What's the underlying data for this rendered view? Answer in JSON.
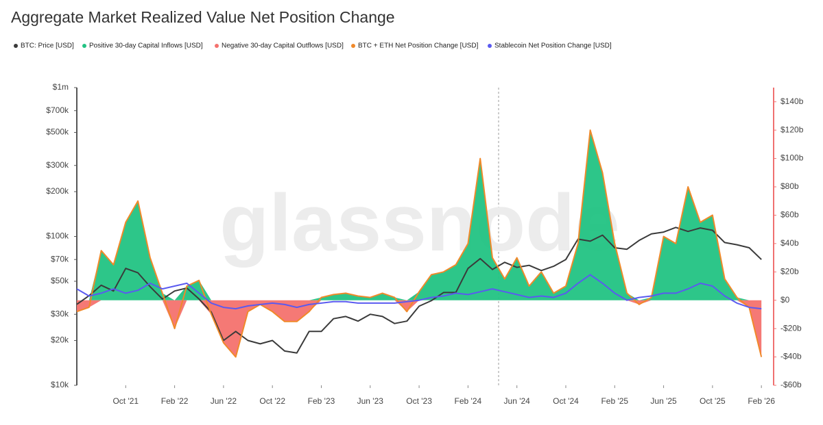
{
  "chart_data": {
    "type": "line",
    "title": "Aggregate Market Realized Value Net Position Change",
    "watermark": "glassnode",
    "x": [
      "2021-06",
      "2021-07",
      "2021-08",
      "2021-09",
      "2021-10",
      "2021-11",
      "2021-12",
      "2022-01",
      "2022-02",
      "2022-03",
      "2022-04",
      "2022-05",
      "2022-06",
      "2022-07",
      "2022-08",
      "2022-09",
      "2022-10",
      "2022-11",
      "2022-12",
      "2023-01",
      "2023-02",
      "2023-03",
      "2023-04",
      "2023-05",
      "2023-06",
      "2023-07",
      "2023-08",
      "2023-09",
      "2023-10",
      "2023-11",
      "2023-12",
      "2024-01",
      "2024-02",
      "2024-03",
      "2024-04",
      "2024-05",
      "2024-06",
      "2024-07",
      "2024-08",
      "2024-09",
      "2024-10",
      "2024-11",
      "2024-12",
      "2025-01",
      "2025-02",
      "2025-03",
      "2025-04",
      "2025-05",
      "2025-06",
      "2025-07",
      "2025-08",
      "2025-09",
      "2025-10",
      "2025-11",
      "2025-12",
      "2026-01",
      "2026-02"
    ],
    "xlim": [
      "2021-06",
      "2026-03"
    ],
    "xticks": [
      {
        "value": "2021-10",
        "label": "Oct '21"
      },
      {
        "value": "2022-02",
        "label": "Feb '22"
      },
      {
        "value": "2022-06",
        "label": "Jun '22"
      },
      {
        "value": "2022-10",
        "label": "Oct '22"
      },
      {
        "value": "2023-02",
        "label": "Feb '23"
      },
      {
        "value": "2023-06",
        "label": "Jun '23"
      },
      {
        "value": "2023-10",
        "label": "Oct '23"
      },
      {
        "value": "2024-02",
        "label": "Feb '24"
      },
      {
        "value": "2024-06",
        "label": "Jun '24"
      },
      {
        "value": "2024-10",
        "label": "Oct '24"
      },
      {
        "value": "2025-02",
        "label": "Feb '25"
      },
      {
        "value": "2025-06",
        "label": "Jun '25"
      },
      {
        "value": "2025-10",
        "label": "Oct '25"
      },
      {
        "value": "2026-02",
        "label": "Feb '26"
      }
    ],
    "ylog": true,
    "ylim": [
      10000,
      1000000
    ],
    "yticks": [
      {
        "value": 10000,
        "label": "$10k"
      },
      {
        "value": 20000,
        "label": "$20k"
      },
      {
        "value": 30000,
        "label": "$30k"
      },
      {
        "value": 50000,
        "label": "$50k"
      },
      {
        "value": 70000,
        "label": "$70k"
      },
      {
        "value": 100000,
        "label": "$100k"
      },
      {
        "value": 200000,
        "label": "$200k"
      },
      {
        "value": 300000,
        "label": "$300k"
      },
      {
        "value": 500000,
        "label": "$500k"
      },
      {
        "value": 700000,
        "label": "$700k"
      },
      {
        "value": 1000000,
        "label": "$1m"
      }
    ],
    "y2lim": [
      -60,
      150
    ],
    "y2ticks": [
      {
        "value": -60,
        "label": "-$60b"
      },
      {
        "value": -40,
        "label": "-$40b"
      },
      {
        "value": -20,
        "label": "-$20b"
      },
      {
        "value": 0,
        "label": "$0"
      },
      {
        "value": 20,
        "label": "$20b"
      },
      {
        "value": 40,
        "label": "$40b"
      },
      {
        "value": 60,
        "label": "$60b"
      },
      {
        "value": 80,
        "label": "$80b"
      },
      {
        "value": 100,
        "label": "$100b"
      },
      {
        "value": 120,
        "label": "$120b"
      },
      {
        "value": 140,
        "label": "$140b"
      }
    ],
    "series": [
      {
        "name": "BTC: Price [USD]",
        "color": "#3a3a3a",
        "type": "line",
        "axis": "y",
        "values": [
          35000,
          40000,
          47000,
          43000,
          61000,
          57000,
          46000,
          38000,
          43000,
          45000,
          38000,
          31000,
          20000,
          23000,
          20000,
          19000,
          20000,
          17000,
          16500,
          23000,
          23000,
          28000,
          29000,
          27000,
          30000,
          29000,
          26000,
          27000,
          34000,
          37000,
          42000,
          42000,
          61000,
          71000,
          60000,
          67000,
          62000,
          64000,
          59000,
          63000,
          70000,
          96000,
          93000,
          102000,
          84000,
          82000,
          94000,
          104000,
          107000,
          115000,
          108000,
          114000,
          110000,
          91000,
          88000,
          84000,
          70000
        ]
      },
      {
        "name": "Positive 30-day Capital Inflows [USD]",
        "color": "#22c383",
        "type": "area",
        "axis": "y2",
        "values": [
          0,
          0,
          35,
          25,
          55,
          70,
          30,
          5,
          0,
          10,
          14,
          0,
          0,
          0,
          0,
          0,
          0,
          0,
          0,
          0,
          2,
          4,
          5,
          3,
          2,
          5,
          2,
          0,
          6,
          18,
          20,
          25,
          40,
          100,
          30,
          15,
          30,
          10,
          20,
          5,
          10,
          40,
          120,
          90,
          40,
          5,
          0,
          2,
          45,
          40,
          80,
          55,
          60,
          15,
          2,
          0,
          0
        ]
      },
      {
        "name": "Negative 30-day Capital Outflows [USD]",
        "color": "#f4726e",
        "type": "area",
        "axis": "y2",
        "values": [
          -8,
          -5,
          0,
          0,
          0,
          0,
          0,
          0,
          -20,
          0,
          0,
          -10,
          -30,
          -40,
          -8,
          -3,
          -8,
          -15,
          -15,
          -8,
          0,
          0,
          0,
          0,
          0,
          0,
          0,
          -8,
          0,
          0,
          0,
          0,
          0,
          0,
          0,
          0,
          0,
          0,
          0,
          0,
          0,
          0,
          0,
          0,
          0,
          0,
          -3,
          0,
          0,
          0,
          0,
          0,
          0,
          0,
          0,
          -5,
          -40
        ]
      },
      {
        "name": "BTC + ETH Net Position Change [USD]",
        "color": "#f0892a",
        "type": "line",
        "axis": "y2",
        "values": [
          -8,
          -5,
          35,
          25,
          55,
          70,
          30,
          5,
          -20,
          10,
          14,
          -10,
          -30,
          -40,
          -8,
          -3,
          -8,
          -15,
          -15,
          -8,
          2,
          4,
          5,
          3,
          2,
          5,
          2,
          -8,
          6,
          18,
          20,
          25,
          40,
          100,
          30,
          15,
          30,
          10,
          20,
          5,
          10,
          40,
          120,
          90,
          40,
          5,
          -3,
          2,
          45,
          40,
          80,
          55,
          60,
          15,
          2,
          -5,
          -40
        ]
      },
      {
        "name": "Stablecoin Net Position Change [USD]",
        "color": "#5a5af0",
        "type": "line",
        "axis": "y2",
        "values": [
          8,
          3,
          5,
          8,
          5,
          7,
          12,
          8,
          10,
          12,
          5,
          -2,
          -5,
          -6,
          -4,
          -3,
          -2,
          -3,
          -5,
          -3,
          -2,
          -1,
          -1,
          -2,
          -2,
          -2,
          -2,
          -1,
          0,
          2,
          3,
          5,
          4,
          6,
          8,
          6,
          4,
          2,
          3,
          2,
          5,
          12,
          18,
          12,
          5,
          0,
          2,
          3,
          5,
          5,
          8,
          12,
          10,
          3,
          -2,
          -5,
          -6
        ]
      }
    ]
  }
}
